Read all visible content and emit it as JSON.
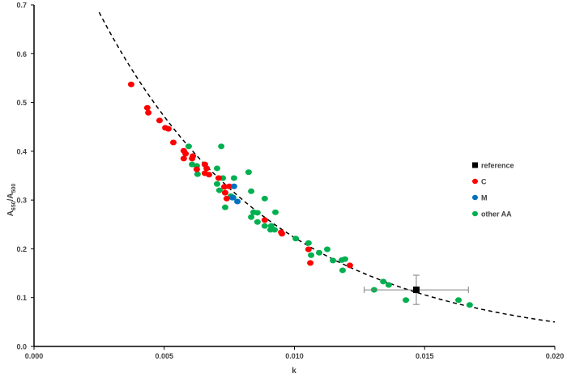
{
  "chart_data": {
    "type": "scatter",
    "xlabel": "k",
    "ylabel": "A650/A500",
    "ylabel_parts": {
      "main": "A",
      "sub1": "650",
      "sep": "/A",
      "sub2": "500"
    },
    "xlim": [
      0,
      0.02
    ],
    "ylim": [
      0,
      0.7
    ],
    "x_ticks": [
      "0.000",
      "0.005",
      "0.010",
      "0.015",
      "0.020"
    ],
    "x_tick_values": [
      0,
      0.005,
      0.01,
      0.015,
      0.02
    ],
    "y_ticks": [
      "0.0",
      "0.1",
      "0.2",
      "0.3",
      "0.4",
      "0.5",
      "0.6",
      "0.7"
    ],
    "y_tick_values": [
      0,
      0.1,
      0.2,
      0.3,
      0.4,
      0.5,
      0.6,
      0.7
    ],
    "grid": false,
    "legend_position": "right",
    "fit_curve": {
      "style": "dashed",
      "form": "exponential",
      "a": 0.995,
      "b": -149.5,
      "x_range": [
        0.0025,
        0.02
      ],
      "color": "#000000"
    },
    "series": [
      {
        "name": "reference",
        "color": "#000000",
        "marker": "square",
        "points": [
          [
            0.01468,
            0.116
          ]
        ],
        "x_error": 0.002,
        "y_error": 0.03
      },
      {
        "name": "C",
        "color": "#ff0000",
        "marker": "circle",
        "points": [
          [
            0.00373,
            0.537
          ],
          [
            0.00435,
            0.489
          ],
          [
            0.00439,
            0.479
          ],
          [
            0.00482,
            0.463
          ],
          [
            0.00504,
            0.448
          ],
          [
            0.00516,
            0.446
          ],
          [
            0.00535,
            0.418
          ],
          [
            0.00575,
            0.401
          ],
          [
            0.00582,
            0.395
          ],
          [
            0.00575,
            0.385
          ],
          [
            0.0061,
            0.39
          ],
          [
            0.00607,
            0.385
          ],
          [
            0.00656,
            0.373
          ],
          [
            0.00663,
            0.365
          ],
          [
            0.00625,
            0.363
          ],
          [
            0.00656,
            0.355
          ],
          [
            0.00672,
            0.352
          ],
          [
            0.00709,
            0.345
          ],
          [
            0.00731,
            0.327
          ],
          [
            0.0075,
            0.328
          ],
          [
            0.00734,
            0.315
          ],
          [
            0.0074,
            0.303
          ],
          [
            0.00886,
            0.259
          ],
          [
            0.00949,
            0.234
          ],
          [
            0.00952,
            0.231
          ],
          [
            0.01054,
            0.199
          ],
          [
            0.01061,
            0.171
          ],
          [
            0.01213,
            0.166
          ]
        ]
      },
      {
        "name": "M",
        "color": "#0070c0",
        "marker": "circle",
        "points": [
          [
            0.00768,
            0.328
          ],
          [
            0.00762,
            0.305
          ],
          [
            0.00781,
            0.297
          ]
        ]
      },
      {
        "name": "other AA",
        "color": "#00b050",
        "marker": "circle",
        "points": [
          [
            0.00594,
            0.41
          ],
          [
            0.00719,
            0.41
          ],
          [
            0.00607,
            0.373
          ],
          [
            0.00625,
            0.37
          ],
          [
            0.00703,
            0.365
          ],
          [
            0.00628,
            0.353
          ],
          [
            0.00725,
            0.345
          ],
          [
            0.00768,
            0.345
          ],
          [
            0.00824,
            0.357
          ],
          [
            0.00703,
            0.333
          ],
          [
            0.00712,
            0.32
          ],
          [
            0.00834,
            0.318
          ],
          [
            0.00756,
            0.308
          ],
          [
            0.00765,
            0.305
          ],
          [
            0.00886,
            0.303
          ],
          [
            0.00734,
            0.285
          ],
          [
            0.00843,
            0.275
          ],
          [
            0.00858,
            0.274
          ],
          [
            0.00927,
            0.275
          ],
          [
            0.00834,
            0.265
          ],
          [
            0.00858,
            0.255
          ],
          [
            0.00886,
            0.247
          ],
          [
            0.00911,
            0.247
          ],
          [
            0.00908,
            0.239
          ],
          [
            0.00924,
            0.239
          ],
          [
            0.01005,
            0.221
          ],
          [
            0.01054,
            0.212
          ],
          [
            0.01064,
            0.187
          ],
          [
            0.01095,
            0.192
          ],
          [
            0.01126,
            0.199
          ],
          [
            0.01148,
            0.176
          ],
          [
            0.01182,
            0.177
          ],
          [
            0.01194,
            0.179
          ],
          [
            0.01185,
            0.156
          ],
          [
            0.01306,
            0.116
          ],
          [
            0.01341,
            0.133
          ],
          [
            0.01362,
            0.126
          ],
          [
            0.01428,
            0.095
          ],
          [
            0.0163,
            0.095
          ],
          [
            0.01673,
            0.085
          ]
        ]
      }
    ]
  }
}
